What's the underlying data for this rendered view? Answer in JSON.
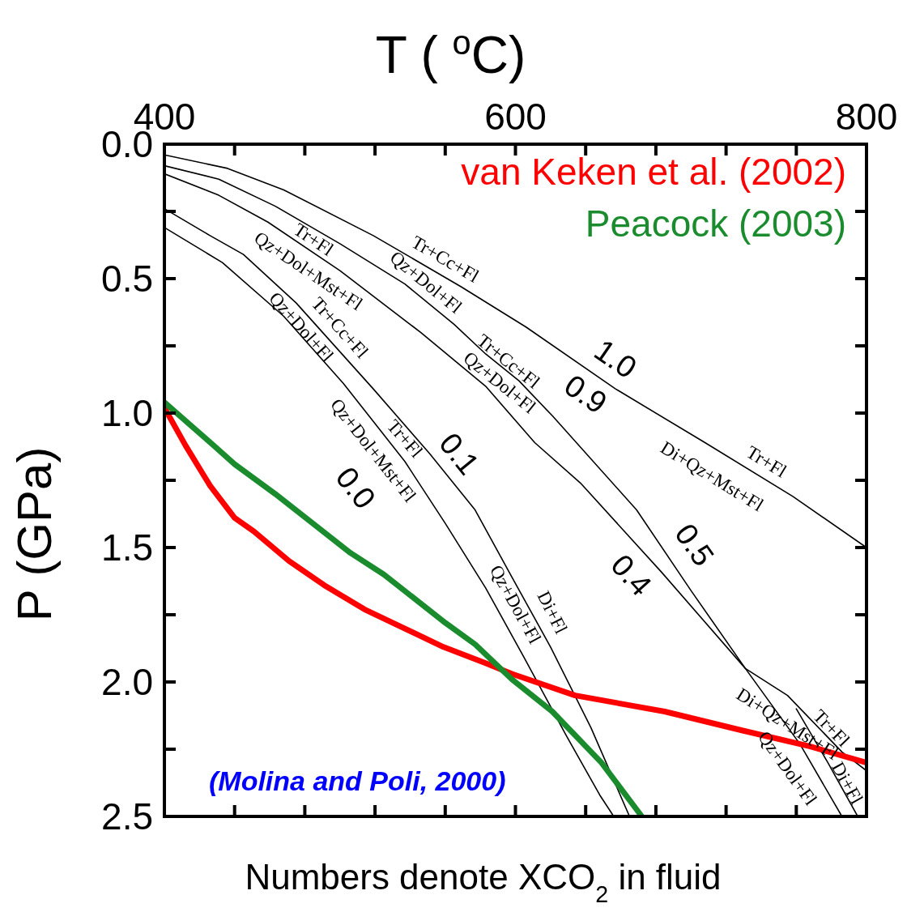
{
  "chart_data": {
    "type": "line",
    "xlabel": "T ( $^{o}$C)",
    "ylabel": "P (GPa)",
    "xlim": [
      400,
      800
    ],
    "ylim": [
      2.5,
      0
    ],
    "xticks": [
      400,
      {
        "value": 440,
        "label": null
      },
      {
        "value": 480,
        "label": null
      },
      {
        "value": 520,
        "label": null
      },
      {
        "value": 560,
        "label": null
      },
      600,
      {
        "value": 640,
        "label": null
      },
      {
        "value": 680,
        "label": null
      },
      {
        "value": 720,
        "label": null
      },
      {
        "value": 760,
        "label": null
      },
      800
    ],
    "yticks": [
      {
        "value": 0,
        "label": "0.0"
      },
      {
        "value": 0.25,
        "label": null
      },
      {
        "value": 0.5,
        "label": "0.5"
      },
      {
        "value": 0.75,
        "label": null
      },
      {
        "value": 1,
        "label": "1.0"
      },
      {
        "value": 1.25,
        "label": null
      },
      {
        "value": 1.5,
        "label": "1.5"
      },
      {
        "value": 1.75,
        "label": null
      },
      {
        "value": 2,
        "label": "2.0"
      },
      {
        "value": 2.25,
        "label": null
      },
      {
        "value": 2.5,
        "label": "2.5"
      }
    ],
    "grid": false,
    "legend": "top right",
    "marker": "none",
    "line_style": "solid",
    "series": [
      {
        "color": "#000000",
        "x": [
          400,
          436,
          468,
          519,
          569,
          606,
          657,
          708,
          758,
          800
        ],
        "values": [
          0.04,
          0.09,
          0.17,
          0.34,
          0.53,
          0.68,
          0.91,
          1.11,
          1.31,
          1.5
        ]
      },
      {
        "color": "#000000",
        "x": [
          400,
          431,
          463,
          500,
          537,
          565,
          583,
          602,
          621,
          669,
          700,
          731,
          762,
          786
        ],
        "values": [
          0.08,
          0.13,
          0.23,
          0.37,
          0.52,
          0.67,
          0.78,
          0.88,
          1.01,
          1.36,
          1.66,
          1.95,
          2.23,
          2.5
        ]
      },
      {
        "color": "#000000",
        "x": [
          400,
          431,
          459,
          500,
          546,
          583,
          611,
          637,
          683,
          731,
          755,
          786,
          800
        ],
        "values": [
          0.11,
          0.19,
          0.29,
          0.47,
          0.7,
          0.9,
          1.11,
          1.26,
          1.59,
          1.95,
          2.05,
          2.26,
          2.33
        ]
      },
      {
        "color": "#000000",
        "x": [
          400,
          426,
          445,
          475,
          519,
          551,
          577,
          598,
          620,
          643,
          665
        ],
        "values": [
          0.24,
          0.34,
          0.41,
          0.59,
          0.91,
          1.15,
          1.36,
          1.61,
          1.87,
          2.17,
          2.5
        ]
      },
      {
        "color": "#000000",
        "x": [
          400,
          433,
          468,
          502,
          537,
          560,
          583,
          605,
          629,
          648,
          656
        ],
        "values": [
          0.31,
          0.44,
          0.64,
          0.89,
          1.18,
          1.41,
          1.65,
          1.91,
          2.2,
          2.42,
          2.5
        ]
      },
      {
        "color": "#000000",
        "x": [
          760,
          778,
          795
        ],
        "values": [
          2.1,
          2.3,
          2.5
        ]
      },
      {
        "name": "van Keken et al. (2002)",
        "color": "#ff0000",
        "x": [
          400,
          412,
          426,
          440,
          451,
          471,
          491,
          514,
          559,
          583,
          598,
          634,
          685,
          729,
          768,
          800
        ],
        "values": [
          0.98,
          1.12,
          1.27,
          1.39,
          1.44,
          1.55,
          1.64,
          1.73,
          1.87,
          1.93,
          1.97,
          2.05,
          2.11,
          2.18,
          2.24,
          2.3
        ]
      },
      {
        "name": "Peacock (2003)",
        "color": "#1a8c2e",
        "x": [
          400,
          428,
          440,
          463,
          506,
          525,
          560,
          577,
          598,
          621,
          649,
          672
        ],
        "values": [
          0.96,
          1.12,
          1.19,
          1.3,
          1.52,
          1.6,
          1.78,
          1.86,
          1.99,
          2.11,
          2.3,
          2.5
        ]
      }
    ],
    "annotations": [
      "(Molina and Poli, 2000)",
      "Numbers denote XCO$_{2}$ in fluid",
      {
        "text": "Tr+Fl",
        "x": 485,
        "y": 0.4
      },
      {
        "text": "Qz+Dol+Mst+Fl",
        "x": 482,
        "y": 0.39
      },
      {
        "text": "Tr+Cc+Fl",
        "x": 500,
        "y": 0.77
      },
      {
        "text": "Qz+Dol+Fl",
        "x": 478,
        "y": 0.71
      },
      {
        "text": "Tr+Cc+Fl",
        "x": 560,
        "y": 0.5
      },
      {
        "text": "Qz+Dol+Fl",
        "x": 549,
        "y": 0.58
      },
      {
        "text": "Tr+Cc+Fl",
        "x": 596,
        "y": 0.85
      },
      {
        "text": "Qz+Dol+Fl",
        "x": 591,
        "y": 0.82
      },
      {
        "text": "1.0",
        "x": 657,
        "y": 0.91
      },
      {
        "text": "0.9",
        "x": 640,
        "y": 0.83
      },
      {
        "text": "Di+Qz+Mst+Fl",
        "x": 712,
        "y": 1.13
      },
      {
        "text": "Tr+Fl",
        "x": 743,
        "y": 1.25
      },
      {
        "text": "0.1",
        "x": 568,
        "y": 1.29
      },
      {
        "text": "Tr+Fl",
        "x": 537,
        "y": 1.05
      },
      {
        "text": "Qz+Dol+Mst+Fl",
        "x": 519,
        "y": 1.03
      },
      {
        "text": "0.0",
        "x": 509,
        "y": 0.95
      },
      {
        "text": "0.5",
        "x": 702,
        "y": 1.68
      },
      {
        "text": "0.4",
        "x": 666,
        "y": 1.47
      },
      {
        "text": "Qz+Dol+Fl",
        "x": 600,
        "y": 1.63
      },
      {
        "text": "Di+Fl",
        "x": 621,
        "y": 1.88
      },
      {
        "text": "Di+Qz+Mst+Fl",
        "x": 755,
        "y": 2.05
      },
      {
        "text": "Tr+Fl",
        "x": 780,
        "y": 2.22
      },
      {
        "text": "Qz+Dol+Fl",
        "x": 755,
        "y": 2.17
      },
      {
        "text": "Di+Fl",
        "x": 789,
        "y": 2.43
      }
    ]
  }
}
